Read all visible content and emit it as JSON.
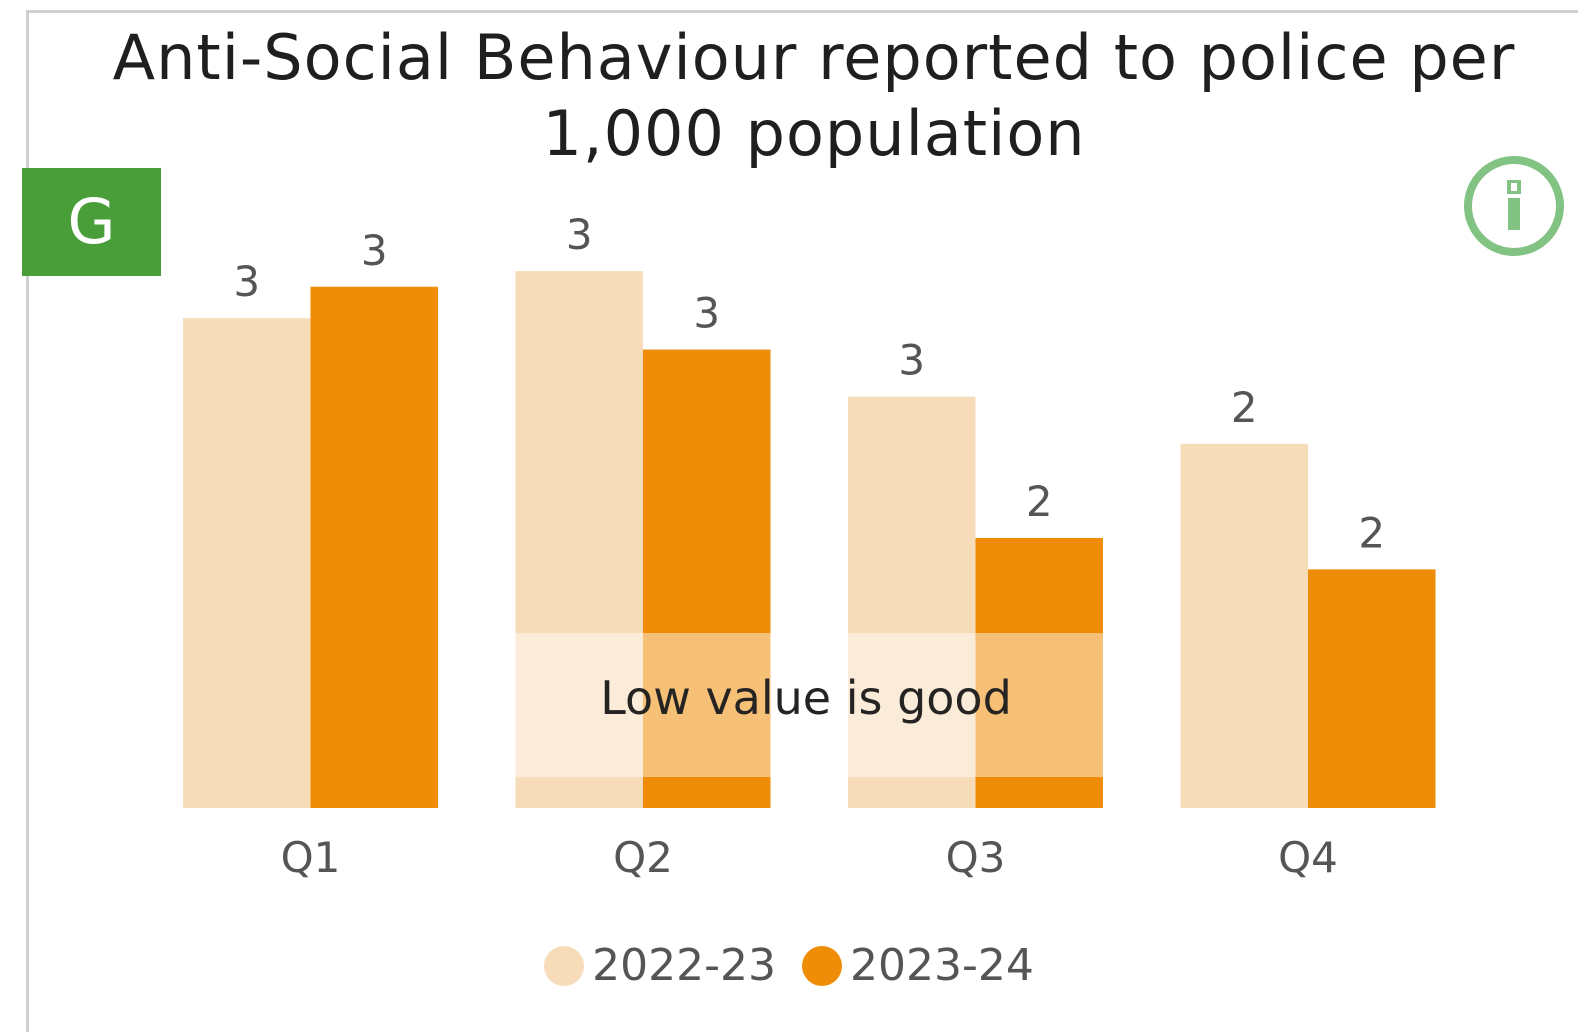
{
  "chart_data": {
    "type": "bar",
    "title": "Anti-Social Behaviour reported to police per 1,000 population",
    "categories": [
      "Q1",
      "Q2",
      "Q3",
      "Q4"
    ],
    "series": [
      {
        "name": "2022-23",
        "values": [
          3.12,
          3.42,
          2.62,
          2.32
        ],
        "labels": [
          "3",
          "3",
          "3",
          "2"
        ],
        "color": "#f7dcba"
      },
      {
        "name": "2023-24",
        "values": [
          3.32,
          2.92,
          1.72,
          1.52
        ],
        "labels": [
          "3",
          "3",
          "2",
          "2"
        ],
        "color": "#f08d08"
      }
    ],
    "ylim": [
      0,
      4
    ],
    "grid": false,
    "legend_position": "bottom-center",
    "annotation": "Low value is good",
    "status_badge": "G",
    "status_color": "#4a9e3a",
    "info_icon": "info-icon"
  }
}
